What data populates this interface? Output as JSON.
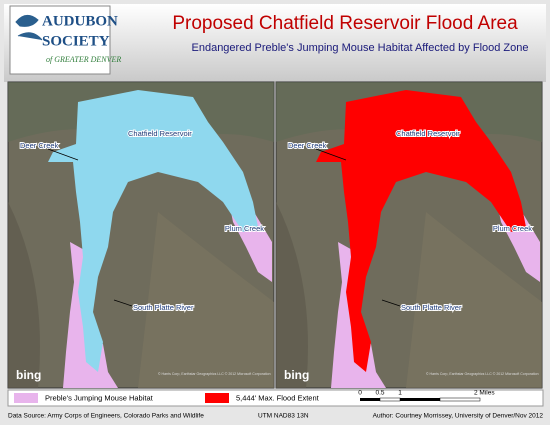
{
  "logo": {
    "line1": "AUDUBON",
    "line2": "SOCIETY",
    "line3": "of GREATER DENVER"
  },
  "header": {
    "title": "Proposed Chatfield Reservoir Flood Area",
    "subtitle": "Endangered Preble's Jumping Mouse Habitat Affected by Flood Zone"
  },
  "maps": [
    {
      "labels": {
        "deer_creek": "Deer Creek",
        "reservoir": "Chatfield Reservoir",
        "plum_creek": "Plum Creek",
        "south_platte": "South Platte River"
      },
      "basemap": "bing",
      "credit": "© Harris Corp, Earthstar Geographics LLC © 2012 Microsoft Corporation"
    },
    {
      "labels": {
        "deer_creek": "Deer Creek",
        "reservoir": "Chatfield Reservoir",
        "plum_creek": "Plum Creek",
        "south_platte": "South Platte River"
      },
      "basemap": "bing",
      "credit": "© Harris Corp, Earthstar Geographics LLC © 2012 Microsoft Corporation"
    }
  ],
  "legend": {
    "items": [
      "Preble's Jumping Mouse Habitat",
      "5,444' Max. Flood Extent"
    ],
    "scale": [
      "0",
      "0.5",
      "1",
      "2 Miles"
    ]
  },
  "footer": {
    "source": "Data Source: Army Corps of Engineers, Colorado Parks and Wildlife",
    "projection": "UTM NAD83 13N",
    "author": "Author: Courtney Morrissey, University of Denver/Nov 2012"
  }
}
